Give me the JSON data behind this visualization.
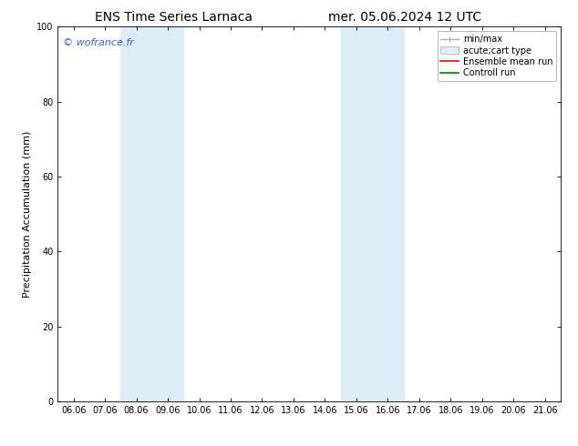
{
  "title_left": "ENS Time Series Larnaca",
  "title_right": "mer. 05.06.2024 12 UTC",
  "ylabel": "Precipitation Accumulation (mm)",
  "ylim": [
    0,
    100
  ],
  "yticks": [
    0,
    20,
    40,
    60,
    80,
    100
  ],
  "x_labels": [
    "06.06",
    "07.06",
    "08.06",
    "09.06",
    "10.06",
    "11.06",
    "12.06",
    "13.06",
    "14.06",
    "15.06",
    "16.06",
    "17.06",
    "18.06",
    "19.06",
    "20.06",
    "21.06"
  ],
  "x_positions": [
    0,
    1,
    2,
    3,
    4,
    5,
    6,
    7,
    8,
    9,
    10,
    11,
    12,
    13,
    14,
    15
  ],
  "shaded_regions": [
    {
      "xmin": 2.0,
      "xmax": 4.0,
      "color": "#ddeef8"
    },
    {
      "xmin": 9.0,
      "xmax": 11.0,
      "color": "#ddeef8"
    }
  ],
  "watermark_text": "© wofrance.fr",
  "watermark_color": "#3366cc",
  "background_color": "#ffffff",
  "plot_bg_color": "#ffffff",
  "border_color": "#000000",
  "title_fontsize": 10,
  "tick_fontsize": 7,
  "ylabel_fontsize": 8,
  "legend_fontsize": 7
}
